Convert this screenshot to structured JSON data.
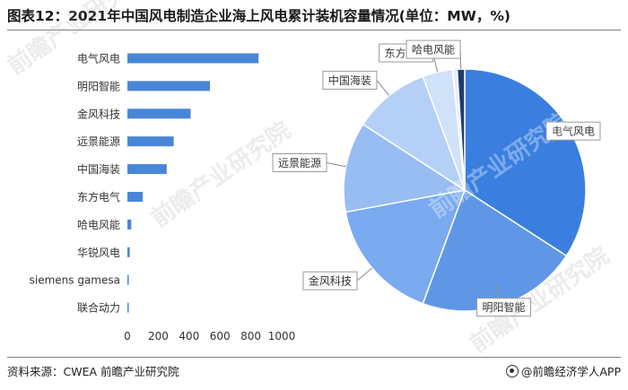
{
  "title": "图表12：2021年中国风电制造企业海上风电累计装机容量情况(单位：MW，%)",
  "footer": {
    "source": "资料来源：CWEA 前瞻产业研究院",
    "brand": "@前瞻经济学人APP"
  },
  "watermark": {
    "text": "前瞻产业研究院"
  },
  "colors": {
    "bar": "#4a86d8",
    "pie": [
      "#3a7fe0",
      "#5f97e6",
      "#7aaaf0",
      "#98bdf2",
      "#b5d0f6",
      "#d0e2f9",
      "#e6effb",
      "#1e3d6e"
    ]
  },
  "chart_data": [
    {
      "type": "bar",
      "orientation": "horizontal",
      "categories": [
        "电气风电",
        "明阳智能",
        "金风科技",
        "远景能源",
        "中国海装",
        "东方电气",
        "哈电风能",
        "华锐风电",
        "siemens gamesa",
        "联合动力"
      ],
      "values": [
        850,
        535,
        410,
        300,
        255,
        100,
        25,
        15,
        8,
        5
      ],
      "xlim": [
        0,
        1000
      ],
      "xticks": [
        "0",
        "200",
        "400",
        "600",
        "800",
        "1000"
      ],
      "grid": false
    },
    {
      "type": "pie",
      "slices": [
        {
          "label": "电气风电",
          "value": 850
        },
        {
          "label": "明阳智能",
          "value": 535
        },
        {
          "label": "金风科技",
          "value": 410
        },
        {
          "label": "远景能源",
          "value": 300
        },
        {
          "label": "中国海装",
          "value": 255
        },
        {
          "label": "东方电气",
          "value": 100
        },
        {
          "label": "",
          "value": 15
        },
        {
          "label": "哈电风能",
          "value": 25
        }
      ],
      "legend": "none"
    }
  ]
}
